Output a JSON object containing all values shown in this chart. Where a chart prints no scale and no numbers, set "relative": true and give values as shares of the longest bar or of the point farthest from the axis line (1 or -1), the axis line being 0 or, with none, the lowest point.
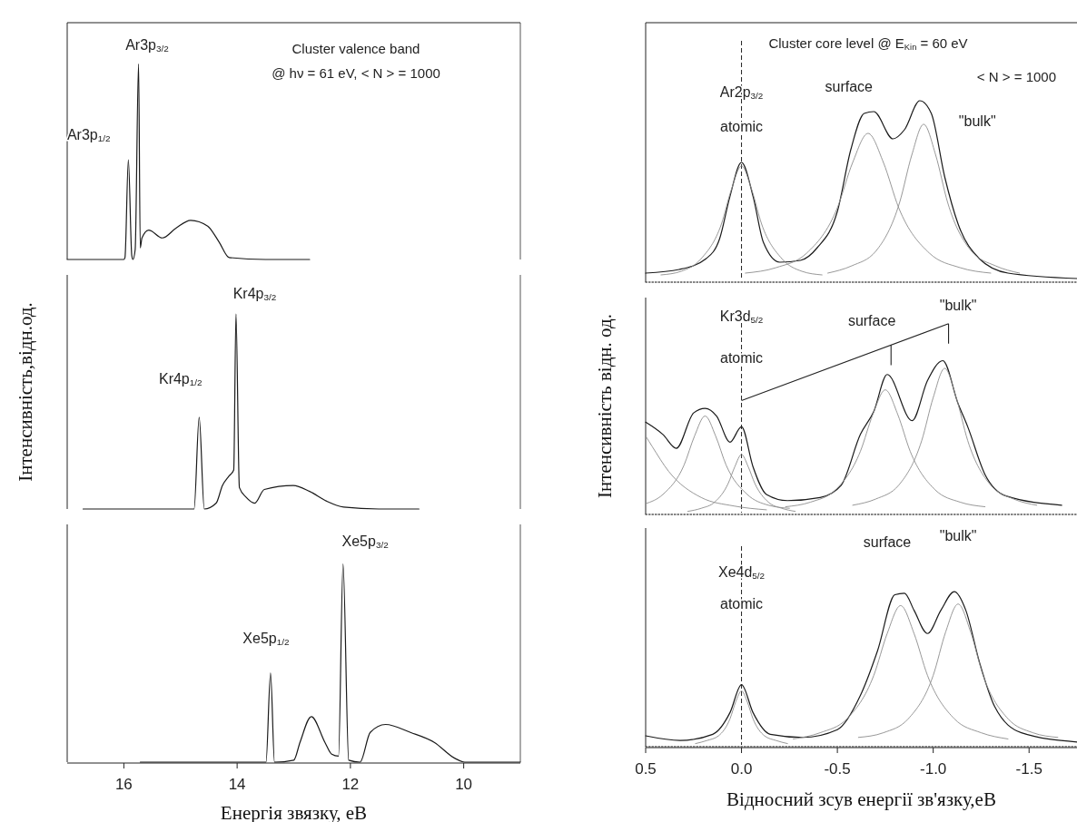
{
  "chart_data": [
    {
      "type": "line",
      "relative": true,
      "title": "Cluster valence band",
      "subtitle": "@ hν = 61 eV, < N > = 1000",
      "xlim": [
        17,
        9
      ],
      "tick_labels": false,
      "series": [
        {
          "color": "#1a1a1a",
          "x": [
            17.0,
            16.0,
            15.98,
            15.92,
            15.86,
            15.84,
            15.8,
            15.74,
            15.71,
            15.68,
            15.56,
            15.32,
            15.08,
            14.82,
            14.52,
            14.32,
            14.14,
            13.5,
            12.72
          ],
          "values": [
            0,
            0,
            0.01,
            0.51,
            0.02,
            0,
            0.05,
            1.0,
            0.06,
            0.11,
            0.15,
            0.11,
            0.16,
            0.2,
            0.17,
            0.09,
            0.01,
            0,
            0
          ]
        }
      ],
      "annotations": [
        "Ar3p$_{3/2}$",
        "Ar3p$_{1/2}$"
      ]
    },
    {
      "type": "line",
      "relative": true,
      "ylabel": "Інтенсивність,відн.од.",
      "xlim": [
        17,
        9
      ],
      "tick_labels": false,
      "series": [
        {
          "color": "#1a1a1a",
          "x": [
            16.72,
            15.5,
            14.76,
            14.67,
            14.58,
            14.37,
            14.26,
            14.14,
            14.06,
            14.02,
            13.96,
            13.84,
            13.69,
            13.52,
            13.01,
            12.72,
            12.42,
            12.12,
            11.5,
            10.79
          ],
          "values": [
            0,
            0,
            0,
            0.47,
            0,
            0.03,
            0.12,
            0.17,
            0.2,
            1.0,
            0.11,
            0.06,
            0.03,
            0.1,
            0.12,
            0.09,
            0.04,
            0.01,
            0,
            0
          ]
        }
      ],
      "annotations": [
        "Kr4p$_{3/2}$",
        "Kr4p$_{1/2}$"
      ]
    },
    {
      "type": "line",
      "relative": true,
      "xlabel": "Енергія звязку, еВ",
      "xlim": [
        17,
        9
      ],
      "xticks": [
        16,
        14,
        12,
        10
      ],
      "series": [
        {
          "color": "#1a1a1a",
          "x": [
            15.71,
            14.5,
            13.49,
            13.41,
            13.34,
            13.0,
            12.89,
            12.69,
            12.45,
            12.33,
            12.21,
            12.13,
            12.03,
            11.83,
            11.65,
            11.38,
            10.94,
            10.52,
            10.16,
            9.98,
            9.0
          ],
          "values": [
            0,
            0,
            0,
            0.45,
            0,
            0.01,
            0.1,
            0.23,
            0.1,
            0.04,
            0.03,
            1.0,
            0.01,
            0,
            0.15,
            0.19,
            0.15,
            0.1,
            0.02,
            0,
            0
          ]
        }
      ],
      "annotations": [
        "Xe5p$_{3/2}$",
        "Xe5p$_{1/2}$"
      ]
    },
    {
      "type": "line",
      "relative": true,
      "title": "Cluster core level @ E$_{Kin}$ = 60 eV",
      "subtitle": "< N > = 1000",
      "xlim": [
        0.5,
        -1.75
      ],
      "tick_labels": false,
      "ref_lines": [
        {
          "axis": "x",
          "value": 0,
          "color": "#222222",
          "line_style": "dashed"
        }
      ],
      "series": [
        {
          "color": "#1a1a1a",
          "x": [
            0.5,
            0.325,
            0.184,
            0.114,
            0.061,
            0.0,
            -0.061,
            -0.114,
            -0.2,
            -0.307,
            -0.395,
            -0.5,
            -0.57,
            -0.64,
            -0.69,
            -0.79,
            -0.85,
            -0.93,
            -0.99,
            -1.06,
            -1.13,
            -1.24,
            -1.39,
            -1.75
          ],
          "values": [
            0.05,
            0.07,
            0.13,
            0.24,
            0.47,
            0.66,
            0.47,
            0.22,
            0.11,
            0.12,
            0.19,
            0.39,
            0.73,
            0.93,
            0.94,
            0.79,
            0.84,
            1.0,
            0.93,
            0.58,
            0.32,
            0.13,
            0.05,
            0.02
          ]
        },
        {
          "color": "#8c8c8c",
          "x": [
            0.42,
            0.315,
            0.21,
            0.105,
            0.053,
            0,
            -0.053,
            -0.105,
            -0.21,
            -0.315,
            -0.42
          ],
          "values": [
            0.04,
            0.06,
            0.13,
            0.32,
            0.51,
            0.64,
            0.51,
            0.32,
            0.13,
            0.06,
            0.04
          ]
        },
        {
          "color": "#8c8c8c",
          "x": [
            -0.02,
            -0.18,
            -0.34,
            -0.5,
            -0.58,
            -0.66,
            -0.74,
            -0.82,
            -0.98,
            -1.14,
            -1.3
          ],
          "values": [
            0.05,
            0.08,
            0.16,
            0.41,
            0.66,
            0.82,
            0.66,
            0.41,
            0.16,
            0.08,
            0.05
          ]
        },
        {
          "color": "#8c8c8c",
          "x": [
            -0.45,
            -0.575,
            -0.7,
            -0.825,
            -0.888,
            -0.95,
            -1.013,
            -1.075,
            -1.2,
            -1.325,
            -1.45
          ],
          "values": [
            0.05,
            0.09,
            0.17,
            0.44,
            0.7,
            0.87,
            0.7,
            0.44,
            0.17,
            0.09,
            0.05
          ]
        },
        {
          "color": "#555555",
          "line_style": "dotted",
          "x": [
            0.5,
            -1.75
          ],
          "values": [
            0,
            0
          ]
        }
      ],
      "annotations": [
        "Ar2p$_{3/2}$",
        "atomic",
        "surface",
        "\"bulk\""
      ]
    },
    {
      "type": "line",
      "relative": true,
      "ylabel": "Інтенсивність відн. од.",
      "xlim": [
        0.5,
        -1.75
      ],
      "tick_labels": false,
      "ref_lines": [
        {
          "axis": "x",
          "value": 0,
          "color": "#222222",
          "line_style": "dashed"
        }
      ],
      "series": [
        {
          "color": "#1a1a1a",
          "x": [
            0.5,
            0.41,
            0.34,
            0.25,
            0.19,
            0.13,
            0.06,
            0.0,
            -0.06,
            -0.13,
            -0.24,
            -0.41,
            -0.52,
            -0.62,
            -0.69,
            -0.76,
            -0.89,
            -0.97,
            -1.05,
            -1.13,
            -1.18,
            -1.27,
            -1.38,
            -1.67
          ],
          "values": [
            0.6,
            0.52,
            0.43,
            0.66,
            0.69,
            0.64,
            0.47,
            0.57,
            0.31,
            0.13,
            0.09,
            0.11,
            0.19,
            0.52,
            0.67,
            0.91,
            0.61,
            0.87,
            1.0,
            0.72,
            0.57,
            0.26,
            0.12,
            0.06
          ]
        },
        {
          "color": "#8c8c8c",
          "x": [
            0.5,
            0.465,
            0.38,
            0.21,
            0.04,
            -0.13
          ],
          "values": [
            0.51,
            0.44,
            0.28,
            0.11,
            0.055,
            0.03
          ]
        },
        {
          "color": "#8c8c8c",
          "x": [
            0.5,
            0.41,
            0.3,
            0.245,
            0.19,
            0.135,
            0.08,
            -0.03,
            -0.14,
            -0.25
          ],
          "values": [
            0.07,
            0.13,
            0.32,
            0.51,
            0.64,
            0.51,
            0.32,
            0.13,
            0.06,
            0.04
          ]
        },
        {
          "color": "#8c8c8c",
          "x": [
            0.28,
            0.21,
            0.14,
            0.07,
            0.035,
            0,
            -0.035,
            -0.07,
            -0.14,
            -0.21,
            -0.28
          ],
          "values": [
            0.02,
            0.04,
            0.08,
            0.2,
            0.31,
            0.39,
            0.31,
            0.2,
            0.08,
            0.04,
            0.02
          ]
        },
        {
          "color": "#8c8c8c",
          "x": [
            -0.23,
            -0.36,
            -0.49,
            -0.62,
            -0.685,
            -0.75,
            -0.815,
            -0.88,
            -1.01,
            -1.14,
            -1.27
          ],
          "values": [
            0.05,
            0.08,
            0.16,
            0.41,
            0.65,
            0.81,
            0.65,
            0.41,
            0.16,
            0.08,
            0.05
          ]
        },
        {
          "color": "#8c8c8c",
          "x": [
            -0.58,
            -0.7,
            -0.82,
            -0.94,
            -1.0,
            -1.06,
            -1.12,
            -1.18,
            -1.3,
            -1.42,
            -1.54
          ],
          "values": [
            0.06,
            0.1,
            0.19,
            0.48,
            0.76,
            0.95,
            0.76,
            0.48,
            0.19,
            0.1,
            0.06
          ]
        },
        {
          "color": "#555555",
          "line_style": "dotted",
          "x": [
            0.5,
            -1.75
          ],
          "values": [
            0,
            0
          ]
        }
      ],
      "annotations": [
        "Kr3d$_{5/2}$",
        "atomic",
        "surface",
        "\"bulk\""
      ]
    },
    {
      "type": "line",
      "relative": true,
      "xlabel": "Відносний зсув енергії зв'язку,еВ",
      "xlim": [
        0.5,
        -1.75
      ],
      "xticks": [
        0.5,
        {
          "value": 0,
          "label": "0.0"
        },
        -0.5,
        {
          "value": -1,
          "label": "-1.0"
        },
        -1.5
      ],
      "ref_lines": [
        {
          "axis": "x",
          "value": 0,
          "color": "#222222",
          "line_style": "dashed"
        }
      ],
      "series": [
        {
          "color": "#1a1a1a",
          "x": [
            0.5,
            0.32,
            0.15,
            0.06,
            0.0,
            -0.06,
            -0.15,
            -0.32,
            -0.5,
            -0.62,
            -0.71,
            -0.8,
            -0.85,
            -0.9,
            -0.97,
            -1.04,
            -1.11,
            -1.17,
            -1.24,
            -1.32,
            -1.46,
            -1.75
          ],
          "values": [
            0.07,
            0.04,
            0.08,
            0.22,
            0.4,
            0.22,
            0.08,
            0.06,
            0.11,
            0.33,
            0.62,
            0.98,
            0.99,
            0.88,
            0.73,
            0.88,
            1.0,
            0.88,
            0.55,
            0.26,
            0.09,
            0.03
          ]
        },
        {
          "color": "#8c8c8c",
          "x": [
            0.24,
            0.18,
            0.12,
            0.06,
            0.03,
            0,
            -0.03,
            -0.06,
            -0.12,
            -0.18,
            -0.24
          ],
          "values": [
            0.02,
            0.04,
            0.07,
            0.18,
            0.29,
            0.36,
            0.29,
            0.18,
            0.07,
            0.04,
            0.02
          ]
        },
        {
          "color": "#8c8c8c",
          "x": [
            -0.27,
            -0.41,
            -0.55,
            -0.69,
            -0.76,
            -0.83,
            -0.9,
            -0.97,
            -1.11,
            -1.25,
            -1.39
          ],
          "values": [
            0.05,
            0.09,
            0.18,
            0.46,
            0.73,
            0.91,
            0.73,
            0.46,
            0.18,
            0.09,
            0.05
          ]
        },
        {
          "color": "#8c8c8c",
          "x": [
            -0.61,
            -0.74,
            -0.87,
            -1.0,
            -1.065,
            -1.13,
            -1.195,
            -1.26,
            -1.39,
            -1.52,
            -1.65
          ],
          "values": [
            0.06,
            0.09,
            0.18,
            0.46,
            0.74,
            0.92,
            0.74,
            0.46,
            0.18,
            0.09,
            0.06
          ]
        },
        {
          "color": "#555555",
          "line_style": "dotted",
          "x": [
            0.5,
            -1.75
          ],
          "values": [
            0,
            0
          ]
        }
      ],
      "annotations": [
        "Xe4d$_{5/2}$",
        "atomic",
        "surface",
        "\"bulk\""
      ]
    }
  ]
}
